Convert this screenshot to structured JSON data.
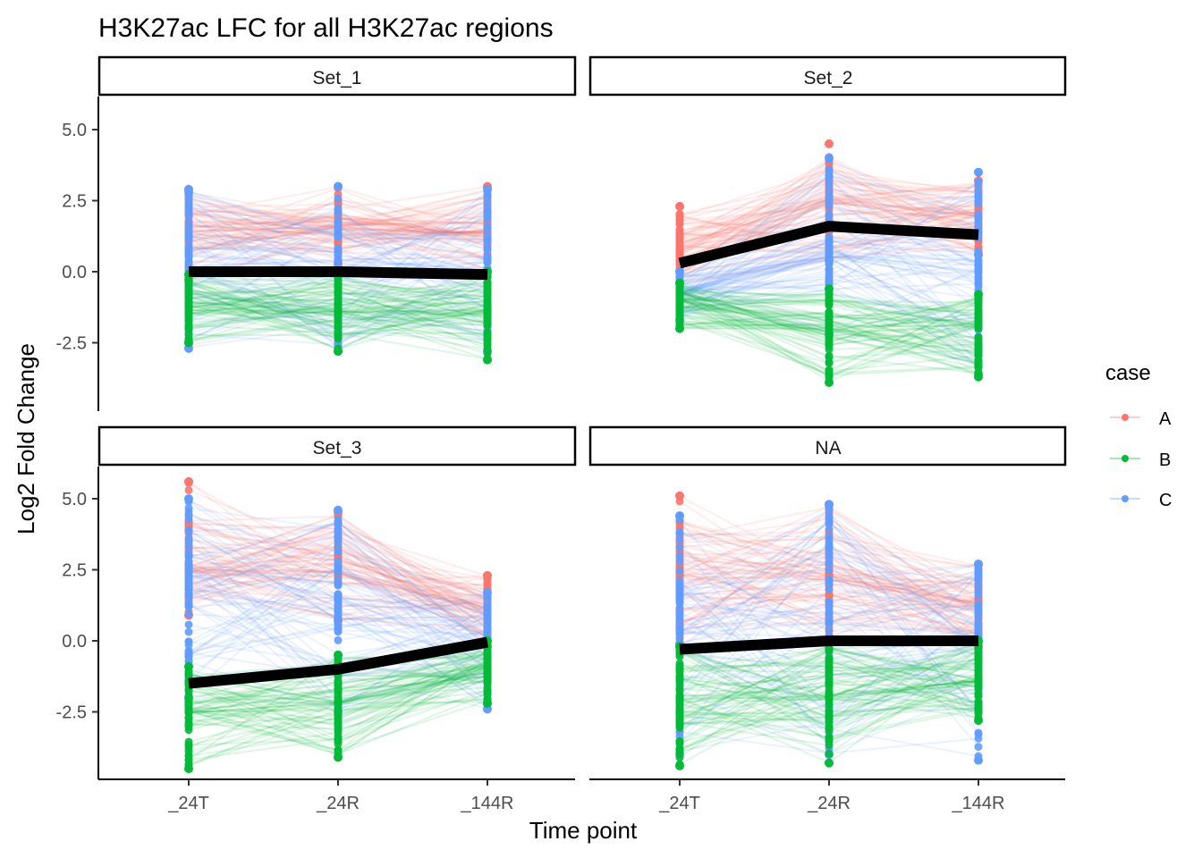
{
  "chart_data": {
    "type": "line",
    "title": "H3K27ac LFC  for all H3K27ac regions",
    "xlabel": "Time point",
    "ylabel": "Log2 Fold Change",
    "categories": [
      "_24T",
      "_24R",
      "_144R"
    ],
    "y_ticks": [
      -2.5,
      0.0,
      2.5,
      5.0
    ],
    "y_tick_labels": [
      "-2.5",
      "0.0",
      "2.5",
      "5.0"
    ],
    "ylim": [
      -4.9,
      6.1
    ],
    "grid": false,
    "legend": {
      "title": "case",
      "position": "right",
      "entries": [
        {
          "label": "A",
          "color": "#F8766D"
        },
        {
          "label": "B",
          "color": "#00BA38"
        },
        {
          "label": "C",
          "color": "#619CFF"
        }
      ]
    },
    "summary_line_color": "#000000",
    "panels": [
      {
        "name": "Set_1",
        "mean": [
          0.0,
          0.0,
          -0.1
        ],
        "groups": {
          "A": {
            "min": [
              -0.3,
              0.3,
              0.0
            ],
            "max": [
              2.8,
              3.0,
              3.0
            ],
            "center": [
              1.4,
              1.6,
              1.4
            ]
          },
          "B": {
            "min": [
              -2.5,
              -2.8,
              -3.1
            ],
            "max": [
              -0.1,
              0.0,
              0.0
            ],
            "center": [
              -1.2,
              -1.4,
              -1.4
            ]
          },
          "C": {
            "min": [
              -2.7,
              -2.8,
              -2.8
            ],
            "max": [
              2.9,
              3.0,
              2.9
            ],
            "center": [
              0.2,
              0.0,
              0.0
            ]
          }
        }
      },
      {
        "name": "Set_2",
        "mean": [
          0.3,
          1.6,
          1.3
        ],
        "groups": {
          "A": {
            "min": [
              -0.4,
              0.4,
              0.6
            ],
            "max": [
              2.3,
              4.5,
              3.2
            ],
            "center": [
              0.9,
              2.5,
              2.0
            ]
          },
          "B": {
            "min": [
              -2.0,
              -3.9,
              -3.7
            ],
            "max": [
              -0.4,
              -0.6,
              -0.8
            ],
            "center": [
              -1.0,
              -2.0,
              -1.9
            ]
          },
          "C": {
            "min": [
              -1.7,
              -2.2,
              -3.6
            ],
            "max": [
              0.0,
              4.0,
              3.5
            ],
            "center": [
              -0.8,
              0.6,
              0.0
            ]
          }
        }
      },
      {
        "name": "Set_3",
        "mean": [
          -1.5,
          -1.0,
          -0.05
        ],
        "groups": {
          "A": {
            "min": [
              0.9,
              0.7,
              -0.2
            ],
            "max": [
              5.6,
              4.5,
              2.3
            ],
            "center": [
              2.6,
              2.5,
              1.1
            ]
          },
          "B": {
            "min": [
              -4.5,
              -4.1,
              -2.2
            ],
            "max": [
              -0.9,
              -0.5,
              0.0
            ],
            "center": [
              -2.5,
              -2.2,
              -0.9
            ]
          },
          "C": {
            "min": [
              -2.0,
              -2.5,
              -2.4
            ],
            "max": [
              5.0,
              4.6,
              1.7
            ],
            "center": [
              2.0,
              1.6,
              0.2
            ]
          }
        }
      },
      {
        "name": "NA",
        "mean": [
          -0.3,
          0.0,
          0.0
        ],
        "groups": {
          "A": {
            "min": [
              -0.1,
              0.1,
              -0.2
            ],
            "max": [
              5.1,
              4.8,
              2.7
            ],
            "center": [
              2.3,
              2.3,
              1.3
            ]
          },
          "B": {
            "min": [
              -4.4,
              -4.3,
              -2.8
            ],
            "max": [
              -0.2,
              -0.1,
              0.0
            ],
            "center": [
              -2.2,
              -2.0,
              -1.4
            ]
          },
          "C": {
            "min": [
              -4.0,
              -4.0,
              -4.2
            ],
            "max": [
              4.4,
              4.8,
              2.7
            ],
            "center": [
              0.4,
              0.6,
              -0.2
            ]
          }
        }
      }
    ]
  }
}
